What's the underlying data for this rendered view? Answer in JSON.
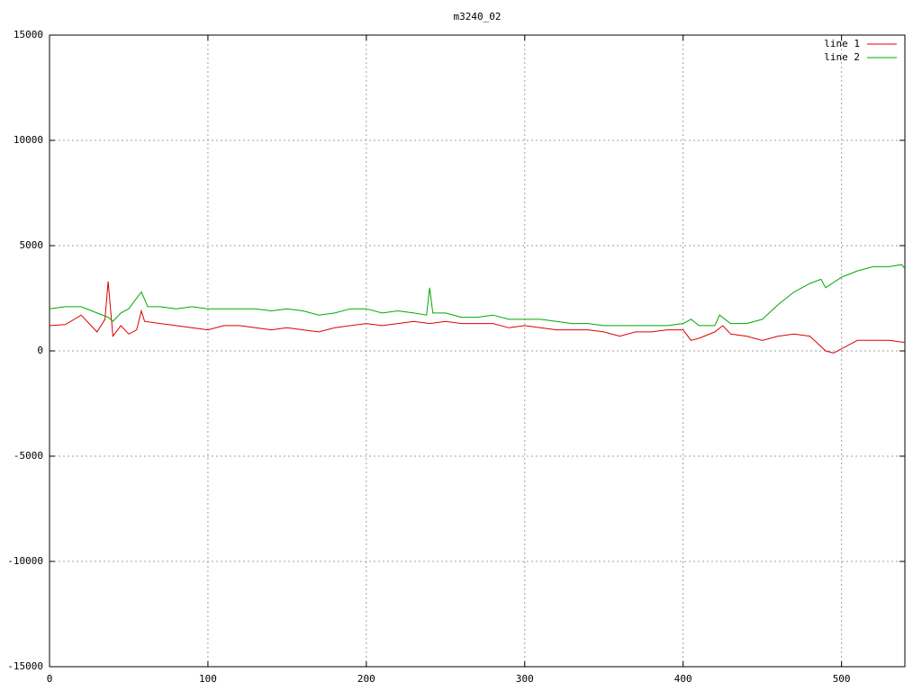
{
  "chart_data": {
    "type": "line",
    "title": "m3240_02",
    "xlim": [
      0,
      540
    ],
    "xticks": [
      0,
      100,
      200,
      300,
      400,
      500
    ],
    "ylim": [
      -15000,
      15000
    ],
    "yticks": [
      -15000,
      -10000,
      -5000,
      0,
      5000,
      10000,
      15000
    ],
    "grid": true,
    "legend": "top-right",
    "series": [
      {
        "name": "line 1",
        "color": "#dd0000",
        "x": [
          0,
          10,
          20,
          25,
          30,
          35,
          37,
          40,
          45,
          50,
          55,
          58,
          60,
          70,
          80,
          90,
          100,
          110,
          120,
          130,
          140,
          150,
          160,
          170,
          180,
          190,
          200,
          210,
          220,
          230,
          240,
          250,
          260,
          270,
          280,
          290,
          300,
          310,
          320,
          330,
          340,
          350,
          360,
          370,
          380,
          390,
          400,
          405,
          410,
          420,
          425,
          430,
          440,
          450,
          460,
          470,
          480,
          490,
          495,
          500,
          510,
          520,
          530,
          540
        ],
        "values": [
          1200,
          1250,
          1700,
          1300,
          900,
          1500,
          3300,
          700,
          1200,
          800,
          1000,
          1900,
          1400,
          1300,
          1200,
          1100,
          1000,
          1200,
          1200,
          1100,
          1000,
          1100,
          1000,
          900,
          1100,
          1200,
          1300,
          1200,
          1300,
          1400,
          1300,
          1400,
          1300,
          1300,
          1300,
          1100,
          1200,
          1100,
          1000,
          1000,
          1000,
          900,
          700,
          900,
          900,
          1000,
          1000,
          500,
          600,
          900,
          1200,
          800,
          700,
          500,
          700,
          800,
          700,
          0,
          -100,
          100,
          500,
          500,
          500,
          400
        ]
      },
      {
        "name": "line 2",
        "color": "#00aa00",
        "x": [
          0,
          10,
          20,
          30,
          37,
          40,
          45,
          50,
          58,
          62,
          70,
          80,
          90,
          100,
          110,
          120,
          130,
          140,
          150,
          160,
          170,
          180,
          190,
          200,
          210,
          220,
          230,
          238,
          240,
          242,
          250,
          260,
          270,
          280,
          290,
          300,
          310,
          320,
          330,
          340,
          350,
          360,
          370,
          380,
          390,
          400,
          405,
          410,
          420,
          423,
          430,
          440,
          450,
          460,
          470,
          480,
          487,
          490,
          500,
          510,
          520,
          530,
          538,
          540
        ],
        "values": [
          2000,
          2100,
          2100,
          1800,
          1600,
          1400,
          1800,
          2000,
          2800,
          2100,
          2100,
          2000,
          2100,
          2000,
          2000,
          2000,
          2000,
          1900,
          2000,
          1900,
          1700,
          1800,
          2000,
          2000,
          1800,
          1900,
          1800,
          1700,
          3000,
          1800,
          1800,
          1600,
          1600,
          1700,
          1500,
          1500,
          1500,
          1400,
          1300,
          1300,
          1200,
          1200,
          1200,
          1200,
          1200,
          1300,
          1500,
          1200,
          1200,
          1700,
          1300,
          1300,
          1500,
          2200,
          2800,
          3200,
          3400,
          3000,
          3500,
          3800,
          4000,
          4000,
          4100,
          3900
        ]
      }
    ]
  }
}
